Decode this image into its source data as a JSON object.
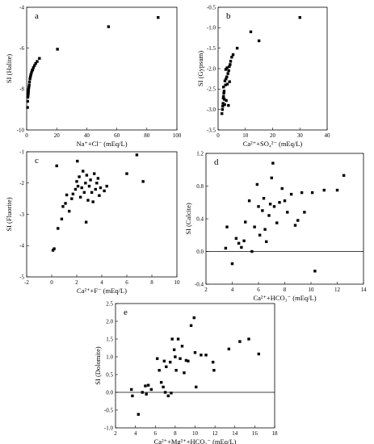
{
  "chart_data": [
    {
      "type": "scatter",
      "panel_label": "a",
      "xlabel": "Na⁺+Cl⁻ (mEq/L)",
      "ylabel": "SI (Halite)",
      "xlim": [
        0,
        100
      ],
      "ylim": [
        -10,
        -4
      ],
      "xticks": [
        "0",
        "20",
        "40",
        "60",
        "80",
        "100"
      ],
      "yticks": [
        "-10",
        "-8",
        "-6",
        "-4"
      ],
      "grid": false,
      "points": [
        [
          0.6,
          -8.9
        ],
        [
          0.7,
          -8.6
        ],
        [
          0.8,
          -8.4
        ],
        [
          0.9,
          -8.3
        ],
        [
          1.0,
          -8.25
        ],
        [
          1.1,
          -8.2
        ],
        [
          1.2,
          -8.1
        ],
        [
          1.3,
          -8.0
        ],
        [
          1.5,
          -7.9
        ],
        [
          1.7,
          -7.8
        ],
        [
          1.9,
          -7.65
        ],
        [
          2.2,
          -7.5
        ],
        [
          2.5,
          -7.4
        ],
        [
          2.8,
          -7.3
        ],
        [
          3.2,
          -7.2
        ],
        [
          3.6,
          -7.1
        ],
        [
          4.0,
          -7.05
        ],
        [
          4.5,
          -6.95
        ],
        [
          5.2,
          -6.85
        ],
        [
          6.0,
          -6.75
        ],
        [
          7.0,
          -6.65
        ],
        [
          8.5,
          -6.5
        ],
        [
          20.5,
          -6.05
        ],
        [
          54.5,
          -4.95
        ],
        [
          87.5,
          -4.5
        ]
      ]
    },
    {
      "type": "scatter",
      "panel_label": "b",
      "xlabel": "Ca²⁺+SO₄²⁻ (mEq/L)",
      "ylabel": "SI (Gypsum)",
      "xlim": [
        0,
        40
      ],
      "ylim": [
        -3.5,
        -0.5
      ],
      "xticks": [
        "0",
        "10",
        "20",
        "30",
        "40"
      ],
      "yticks": [
        "-3.5",
        "-3.0",
        "-2.5",
        "-2.0",
        "-1.5",
        "-1.0",
        "-0.5"
      ],
      "grid": false,
      "points": [
        [
          1.4,
          -3.1
        ],
        [
          1.6,
          -3.0
        ],
        [
          1.7,
          -2.92
        ],
        [
          1.8,
          -2.85
        ],
        [
          1.9,
          -2.72
        ],
        [
          2.0,
          -2.68
        ],
        [
          2.1,
          -2.6
        ],
        [
          2.2,
          -2.55
        ],
        [
          2.0,
          -2.45
        ],
        [
          2.3,
          -2.75
        ],
        [
          2.5,
          -2.3
        ],
        [
          2.7,
          -2.4
        ],
        [
          2.9,
          -2.25
        ],
        [
          3.0,
          -2.78
        ],
        [
          3.2,
          -2.2
        ],
        [
          3.4,
          -2.38
        ],
        [
          3.6,
          -2.12
        ],
        [
          3.8,
          -2.9
        ],
        [
          3.9,
          -2.05
        ],
        [
          4.1,
          -1.95
        ],
        [
          4.2,
          -2.32
        ],
        [
          4.4,
          -1.9
        ],
        [
          4.6,
          -1.82
        ],
        [
          5.0,
          -1.72
        ],
        [
          5.5,
          -1.66
        ],
        [
          7.0,
          -1.5
        ],
        [
          12.0,
          -1.1
        ],
        [
          15.0,
          -1.32
        ],
        [
          30.0,
          -0.75
        ],
        [
          2.4,
          -2.88
        ],
        [
          2.8,
          -2.02
        ],
        [
          3.3,
          -1.98
        ]
      ]
    },
    {
      "type": "scatter",
      "panel_label": "c",
      "xlabel": "Ca²⁺+F⁻ (mEq/L)",
      "ylabel": "SI (Fluorite)",
      "xlim": [
        -2,
        10
      ],
      "ylim": [
        -5,
        -1
      ],
      "xticks": [
        "-2",
        "0",
        "2",
        "4",
        "6",
        "8",
        "10"
      ],
      "yticks": [
        "-5",
        "-4",
        "-3",
        "-2",
        "-1"
      ],
      "grid": false,
      "points": [
        [
          0.1,
          -4.15
        ],
        [
          0.2,
          -4.1
        ],
        [
          0.5,
          -3.45
        ],
        [
          0.8,
          -3.15
        ],
        [
          0.9,
          -2.75
        ],
        [
          1.1,
          -2.65
        ],
        [
          1.2,
          -2.38
        ],
        [
          1.4,
          -2.9
        ],
        [
          1.6,
          -2.5
        ],
        [
          1.7,
          -2.35
        ],
        [
          1.9,
          -2.2
        ],
        [
          2.0,
          -1.95
        ],
        [
          2.1,
          -2.1
        ],
        [
          2.2,
          -1.8
        ],
        [
          2.3,
          -2.45
        ],
        [
          2.4,
          -2.15
        ],
        [
          2.5,
          -1.62
        ],
        [
          2.6,
          -2.3
        ],
        [
          2.7,
          -2.0
        ],
        [
          2.8,
          -1.75
        ],
        [
          2.9,
          -2.55
        ],
        [
          3.0,
          -2.1
        ],
        [
          3.1,
          -1.9
        ],
        [
          3.2,
          -2.3
        ],
        [
          3.3,
          -2.6
        ],
        [
          3.4,
          -1.7
        ],
        [
          3.5,
          -2.2
        ],
        [
          3.6,
          -2.0
        ],
        [
          3.7,
          -1.85
        ],
        [
          3.8,
          -2.4
        ],
        [
          3.9,
          -2.15
        ],
        [
          4.2,
          -2.25
        ],
        [
          4.4,
          -2.1
        ],
        [
          2.05,
          -1.3
        ],
        [
          2.75,
          -3.25
        ],
        [
          6.0,
          -1.7
        ],
        [
          6.8,
          -1.1
        ],
        [
          7.3,
          -1.95
        ],
        [
          0.4,
          -1.45
        ]
      ]
    },
    {
      "type": "scatter",
      "panel_label": "d",
      "xlabel": "Ca²⁺+HCO₃⁻ (mEq/L)",
      "ylabel": "SI (Calcite)",
      "xlim": [
        2,
        14
      ],
      "ylim": [
        -0.4,
        1.2
      ],
      "xticks": [
        "2",
        "4",
        "6",
        "8",
        "10",
        "12",
        "14"
      ],
      "yticks": [
        "-0.4",
        "0.0",
        "0.4",
        "0.8",
        "1.2"
      ],
      "hline": 0,
      "grid": false,
      "points": [
        [
          3.6,
          0.3
        ],
        [
          3.5,
          0.04
        ],
        [
          4.0,
          -0.15
        ],
        [
          4.3,
          0.16
        ],
        [
          4.5,
          0.1
        ],
        [
          4.7,
          0.05
        ],
        [
          4.9,
          0.13
        ],
        [
          5.0,
          0.36
        ],
        [
          5.3,
          0.62
        ],
        [
          5.5,
          0.0
        ],
        [
          5.7,
          0.3
        ],
        [
          5.9,
          0.82
        ],
        [
          6.0,
          0.55
        ],
        [
          6.1,
          0.2
        ],
        [
          6.3,
          0.5
        ],
        [
          6.4,
          0.65
        ],
        [
          6.5,
          0.27
        ],
        [
          6.6,
          0.12
        ],
        [
          6.8,
          0.44
        ],
        [
          6.9,
          0.58
        ],
        [
          7.0,
          0.9
        ],
        [
          7.1,
          1.08
        ],
        [
          7.2,
          0.55
        ],
        [
          7.4,
          0.35
        ],
        [
          7.6,
          0.6
        ],
        [
          7.8,
          0.77
        ],
        [
          8.0,
          0.62
        ],
        [
          8.2,
          0.48
        ],
        [
          8.5,
          0.7
        ],
        [
          8.8,
          0.32
        ],
        [
          9.0,
          0.38
        ],
        [
          9.3,
          0.72
        ],
        [
          9.5,
          0.48
        ],
        [
          10.1,
          0.72
        ],
        [
          10.3,
          -0.24
        ],
        [
          11.0,
          0.75
        ],
        [
          12.0,
          0.75
        ],
        [
          12.5,
          0.93
        ]
      ]
    },
    {
      "type": "scatter",
      "panel_label": "e",
      "xlabel": "Ca²⁺+Mg²⁺+HCO₃⁻ (mEq/L)",
      "ylabel": "SI (Dolomite)",
      "xlim": [
        2,
        18
      ],
      "ylim": [
        -1.0,
        2.5
      ],
      "xticks": [
        "2",
        "4",
        "6",
        "8",
        "10",
        "12",
        "14",
        "16",
        "18"
      ],
      "yticks": [
        "-1.0",
        "-0.5",
        "0.0",
        "0.5",
        "1.0",
        "1.5",
        "2.0",
        "2.5"
      ],
      "hline": 0,
      "grid": false,
      "points": [
        [
          3.6,
          0.08
        ],
        [
          3.7,
          -0.1
        ],
        [
          4.3,
          -0.62
        ],
        [
          4.7,
          0.0
        ],
        [
          5.0,
          0.18
        ],
        [
          5.1,
          -0.05
        ],
        [
          5.3,
          0.2
        ],
        [
          5.6,
          0.08
        ],
        [
          6.2,
          0.95
        ],
        [
          6.4,
          0.62
        ],
        [
          6.6,
          0.28
        ],
        [
          6.8,
          0.15
        ],
        [
          6.9,
          0.88
        ],
        [
          7.0,
          0.0
        ],
        [
          7.1,
          0.72
        ],
        [
          7.3,
          -0.1
        ],
        [
          7.5,
          0.85
        ],
        [
          7.6,
          -0.02
        ],
        [
          7.7,
          1.5
        ],
        [
          7.9,
          1.2
        ],
        [
          8.0,
          1.0
        ],
        [
          8.1,
          0.62
        ],
        [
          8.3,
          1.5
        ],
        [
          8.5,
          0.95
        ],
        [
          8.7,
          1.3
        ],
        [
          8.9,
          0.55
        ],
        [
          9.1,
          0.9
        ],
        [
          9.3,
          0.88
        ],
        [
          9.6,
          1.88
        ],
        [
          9.9,
          2.1
        ],
        [
          10.0,
          1.12
        ],
        [
          10.1,
          0.15
        ],
        [
          10.6,
          1.05
        ],
        [
          11.1,
          1.05
        ],
        [
          11.8,
          0.85
        ],
        [
          11.9,
          0.62
        ],
        [
          13.4,
          1.22
        ],
        [
          14.5,
          1.43
        ],
        [
          15.4,
          1.5
        ],
        [
          16.4,
          1.08
        ]
      ]
    }
  ]
}
